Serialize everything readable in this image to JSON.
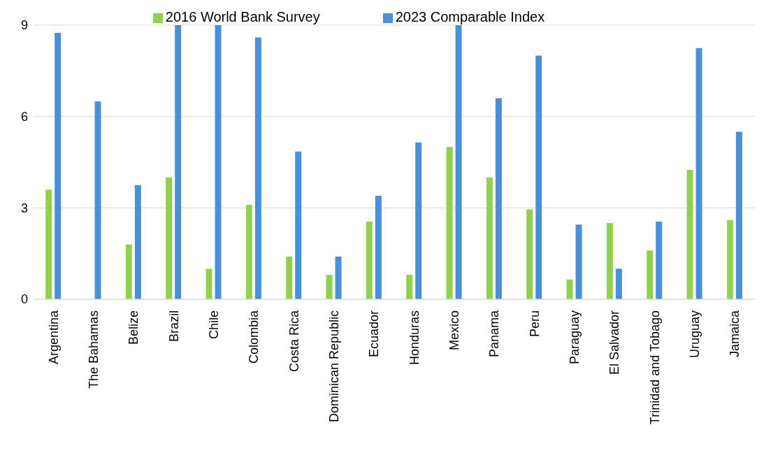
{
  "chart_data": {
    "type": "bar",
    "categories": [
      "Argentina",
      "The Bahamas",
      "Belize",
      "Brazil",
      "Chile",
      "Colombia",
      "Costa Rica",
      "Dominican Republic",
      "Ecuador",
      "Honduras",
      "Mexico",
      "Panama",
      "Peru",
      "Paraguay",
      "El Salvador",
      "Trinidad and Tobago",
      "Uruguay",
      "Jamaica"
    ],
    "series": [
      {
        "name": "2016 World Bank Survey",
        "color": "#92d050",
        "values": [
          3.6,
          null,
          1.8,
          4.0,
          1.0,
          3.1,
          1.4,
          0.8,
          2.55,
          0.8,
          5.0,
          4.0,
          2.95,
          0.65,
          2.5,
          1.6,
          4.25,
          2.6
        ]
      },
      {
        "name": "2023 Comparable Index",
        "color": "#4a90d9",
        "values": [
          8.75,
          6.5,
          3.75,
          9,
          9,
          8.6,
          4.85,
          1.4,
          3.4,
          5.15,
          9,
          6.6,
          8.0,
          2.45,
          1.0,
          2.55,
          8.25,
          5.5
        ]
      }
    ],
    "ylim": [
      0,
      9
    ],
    "yticks": [
      0,
      3,
      6,
      9
    ],
    "grid": "y",
    "legend": "top"
  }
}
